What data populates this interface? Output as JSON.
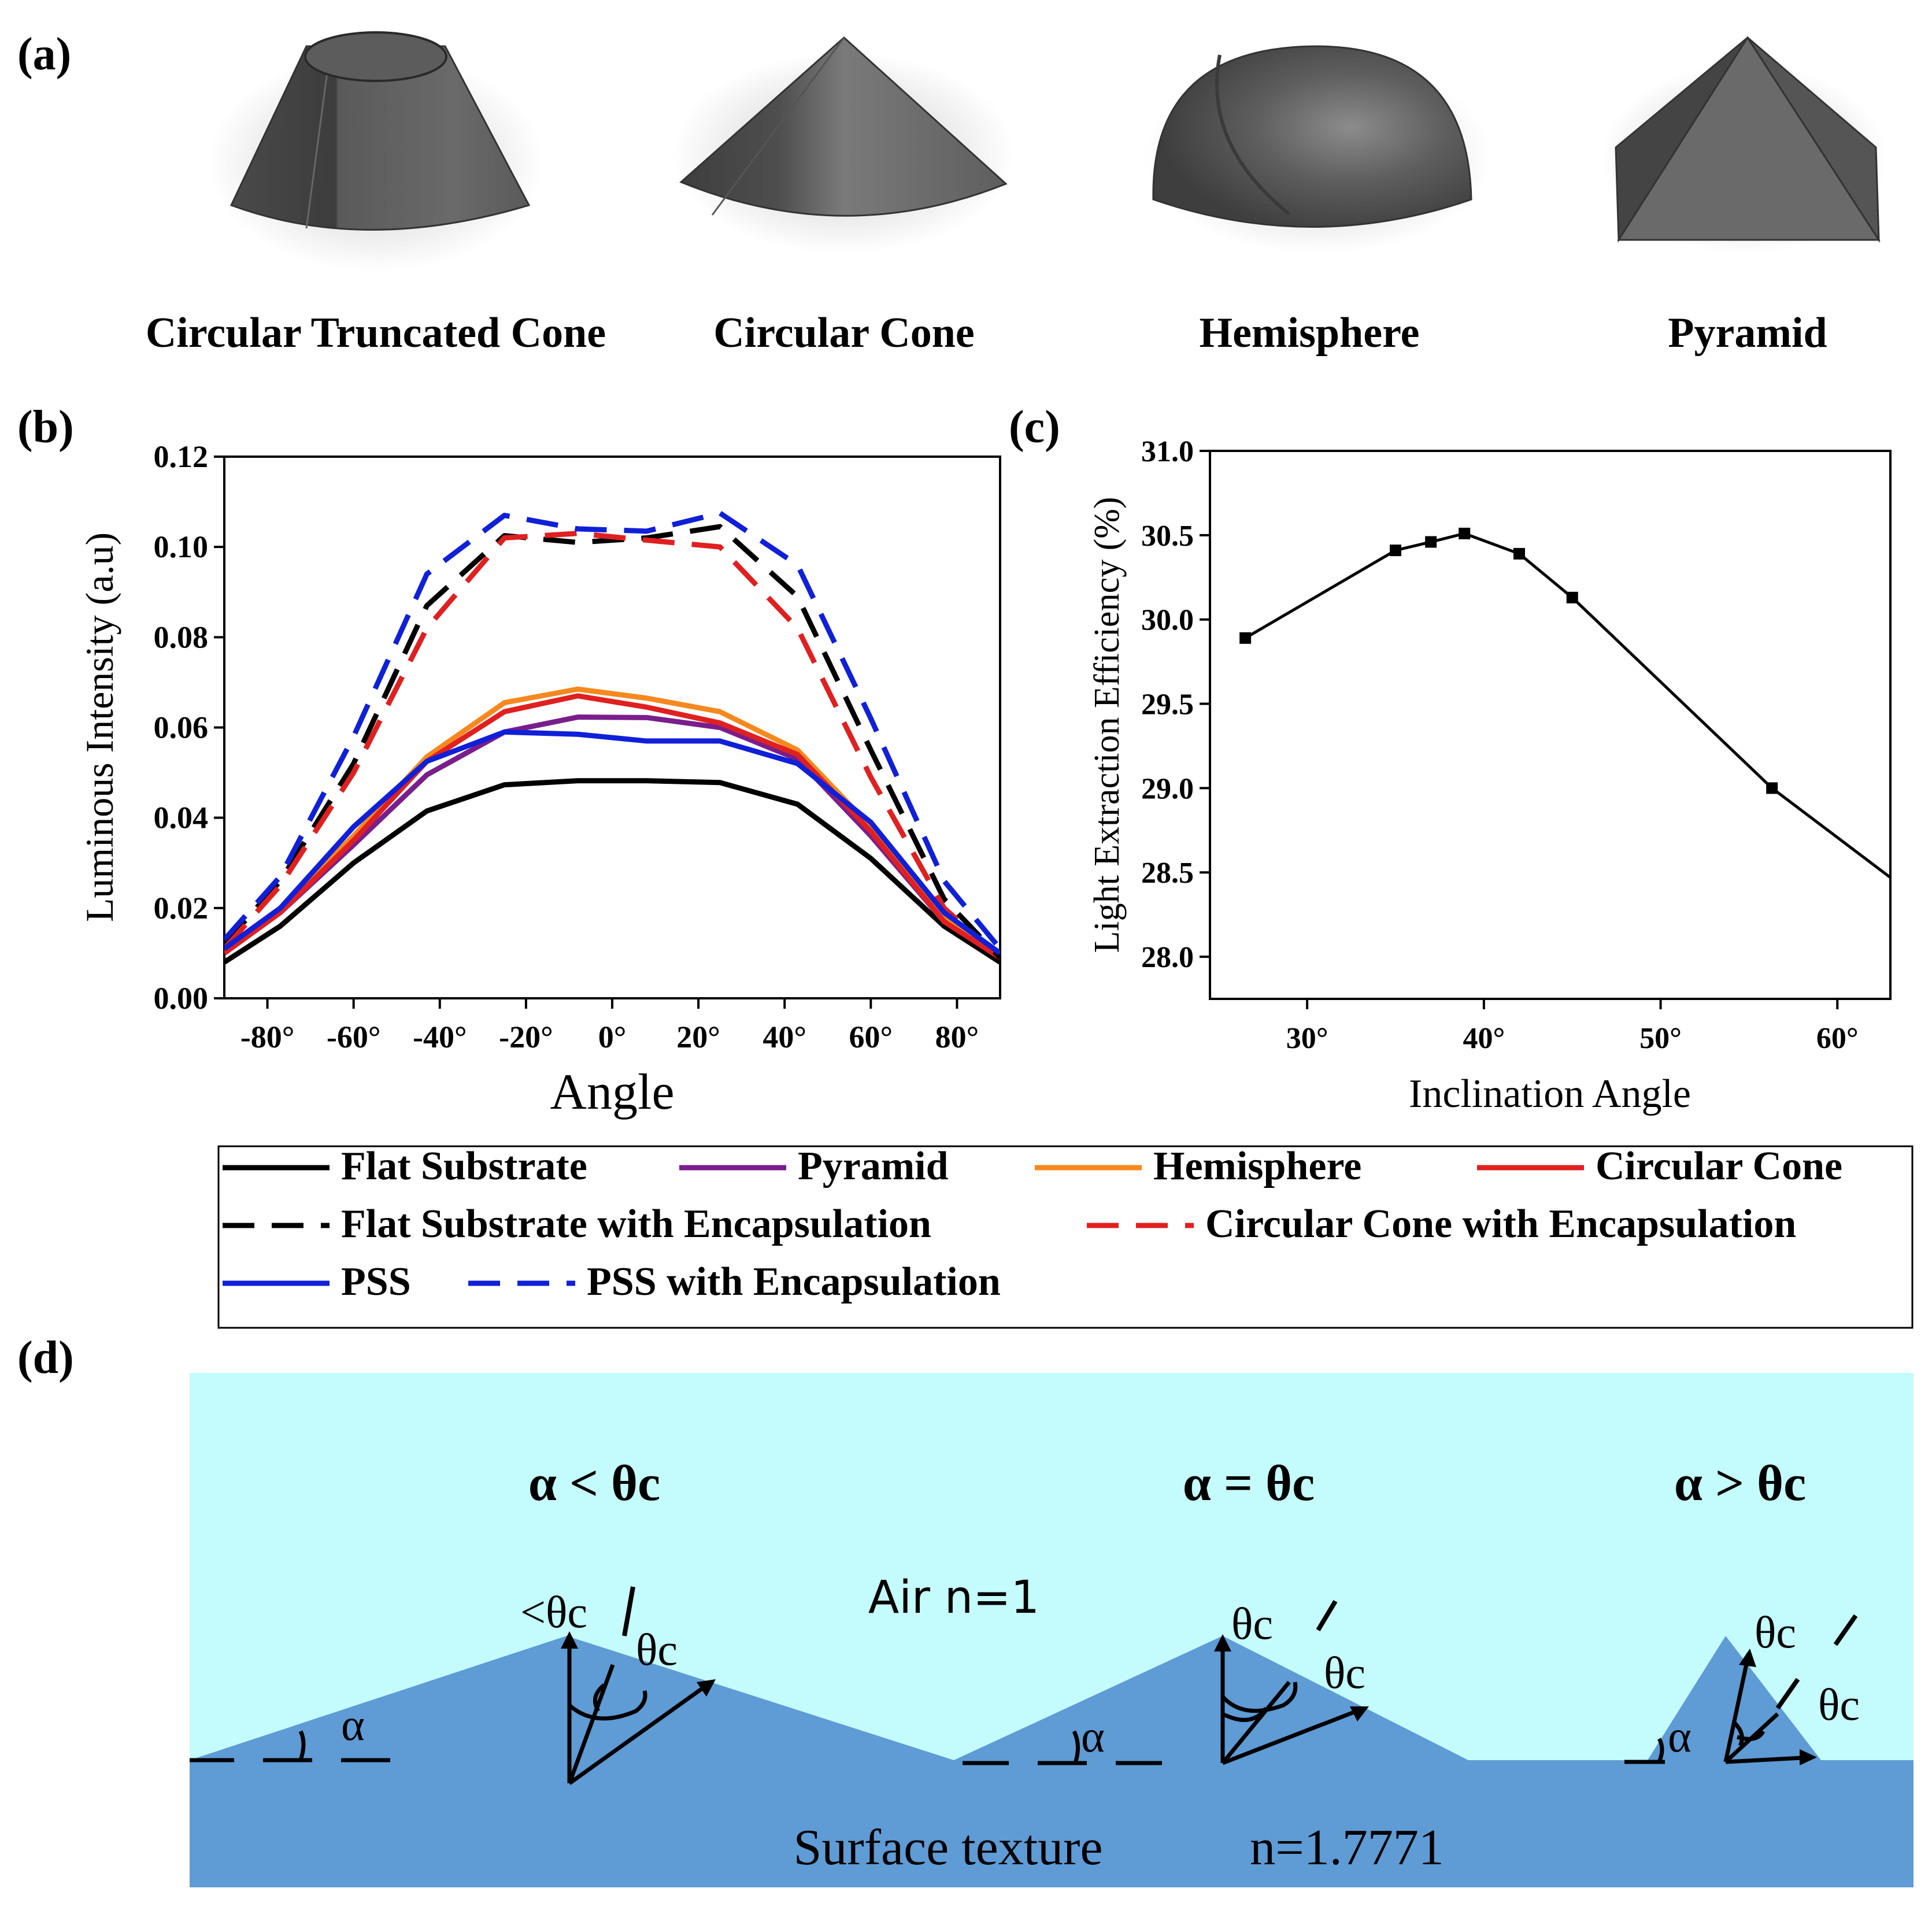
{
  "panels": {
    "a": "(a)",
    "b": "(b)",
    "c": "(c)",
    "d": "(d)"
  },
  "shapes": [
    {
      "label": "Circular Truncated Cone",
      "icon": "truncated-cone-icon"
    },
    {
      "label": "Circular Cone",
      "icon": "cone-icon"
    },
    {
      "label": "Hemisphere",
      "icon": "hemisphere-icon"
    },
    {
      "label": "Pyramid",
      "icon": "pyramid-icon"
    }
  ],
  "chart_data": [
    {
      "id": "b",
      "type": "line",
      "xlabel": "Angle",
      "ylabel": "Luminous Intensity (a.u)",
      "xlim": [
        -90,
        90
      ],
      "ylim": [
        0,
        0.12
      ],
      "xticks": [
        -80,
        -60,
        -40,
        -20,
        0,
        20,
        40,
        60,
        80
      ],
      "xtick_labels": [
        "-80°",
        "-60°",
        "-40°",
        "-20°",
        "0°",
        "20°",
        "40°",
        "60°",
        "80°"
      ],
      "yticks": [
        0,
        0.02,
        0.04,
        0.06,
        0.08,
        0.1,
        0.12
      ],
      "ytick_labels": [
        "0.00",
        "0.02",
        "0.04",
        "0.06",
        "0.08",
        "0.10",
        "0.12"
      ],
      "x": [
        -90,
        -77,
        -60,
        -43,
        -25,
        -8,
        8,
        25,
        43,
        60,
        77,
        90
      ],
      "series": [
        {
          "name": "Flat Substrate",
          "color": "#000000",
          "dash": false,
          "values": [
            0.008,
            0.016,
            0.03,
            0.0415,
            0.0473,
            0.0482,
            0.0482,
            0.0478,
            0.043,
            0.031,
            0.016,
            0.008
          ]
        },
        {
          "name": "Pyramid",
          "color": "#7a1e8c",
          "dash": false,
          "values": [
            0.01,
            0.019,
            0.034,
            0.0495,
            0.059,
            0.0623,
            0.0622,
            0.06,
            0.053,
            0.036,
            0.017,
            0.009
          ]
        },
        {
          "name": "Hemisphere",
          "color": "#f5891f",
          "dash": false,
          "values": [
            0.011,
            0.02,
            0.036,
            0.0535,
            0.0655,
            0.0685,
            0.0665,
            0.0635,
            0.055,
            0.038,
            0.018,
            0.009
          ]
        },
        {
          "name": "Circular Cone",
          "color": "#e02020",
          "dash": false,
          "values": [
            0.01,
            0.019,
            0.035,
            0.0525,
            0.0635,
            0.067,
            0.0645,
            0.061,
            0.054,
            0.037,
            0.017,
            0.009
          ]
        },
        {
          "name": "Flat Substrate with Encapsulation",
          "color": "#000000",
          "dash": true,
          "values": [
            0.012,
            0.026,
            0.052,
            0.087,
            0.1025,
            0.101,
            0.102,
            0.1045,
            0.089,
            0.055,
            0.022,
            0.009
          ]
        },
        {
          "name": "Circular Cone with Encapsulation",
          "color": "#e02020",
          "dash": true,
          "values": [
            0.011,
            0.025,
            0.05,
            0.082,
            0.102,
            0.103,
            0.1015,
            0.1,
            0.082,
            0.049,
            0.02,
            0.009
          ]
        },
        {
          "name": "PSS",
          "color": "#1020d8",
          "dash": false,
          "values": [
            0.011,
            0.02,
            0.038,
            0.0525,
            0.059,
            0.0585,
            0.057,
            0.057,
            0.052,
            0.039,
            0.019,
            0.01
          ]
        },
        {
          "name": "PSS with Encapsulation",
          "color": "#1020d8",
          "dash": true,
          "values": [
            0.013,
            0.027,
            0.058,
            0.094,
            0.107,
            0.104,
            0.1035,
            0.1075,
            0.096,
            0.062,
            0.026,
            0.011
          ]
        }
      ],
      "legend_position": "below"
    },
    {
      "id": "c",
      "type": "line",
      "xlabel": "Inclination Angle",
      "ylabel": "Light Extraction Efficiency (%)",
      "xlim": [
        24.5,
        63
      ],
      "ylim": [
        27.75,
        31.0
      ],
      "xticks": [
        30,
        40,
        50,
        60
      ],
      "xtick_labels": [
        "30°",
        "40°",
        "50°",
        "60°"
      ],
      "yticks": [
        28.0,
        28.5,
        29.0,
        29.5,
        30.0,
        30.5,
        31.0
      ],
      "ytick_labels": [
        "28.0",
        "28.5",
        "29.0",
        "29.5",
        "30.0",
        "30.5",
        "31.0"
      ],
      "x": [
        26.5,
        35,
        37,
        38.9,
        42,
        45,
        56.3,
        63
      ],
      "values": [
        29.89,
        30.41,
        30.46,
        30.51,
        30.39,
        30.13,
        29.0,
        28.47
      ],
      "markers": [
        true,
        true,
        true,
        true,
        true,
        true,
        true,
        false
      ],
      "color": "#000000"
    }
  ],
  "diagram": {
    "air_label": "Air   n=1",
    "substrate_label": "Surface texture",
    "substrate_index": "n=1.7771",
    "alpha": "α",
    "cases": [
      {
        "title": "α <  θc",
        "label_top": "<θc",
        "label_side": "θc"
      },
      {
        "title": "α =  θc",
        "label_top": "θc",
        "label_side": "θc"
      },
      {
        "title": "α > θc",
        "label_top": "θc",
        "label_side": "θc"
      }
    ],
    "colors": {
      "air": "#c4fbfc",
      "texture": "#5f9bd5"
    }
  }
}
